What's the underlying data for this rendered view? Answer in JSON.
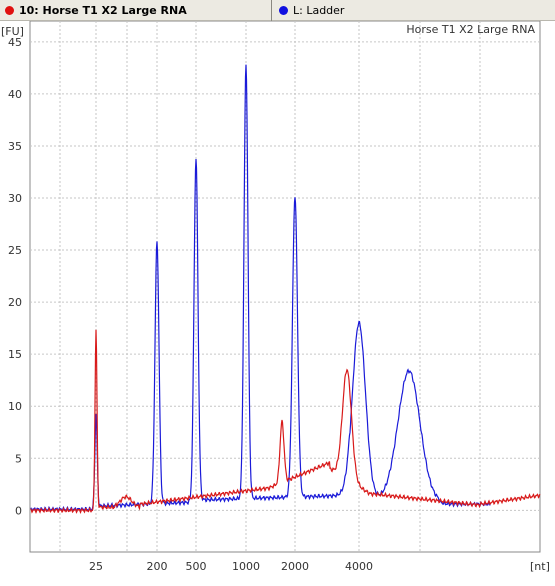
{
  "tabs": [
    {
      "label": "10: Horse T1 X2 Large RNA",
      "color": "#e01010"
    },
    {
      "label": "L: Ladder",
      "color": "#1010e0"
    }
  ],
  "chart_data": {
    "type": "line",
    "title": "Horse T1 X2 Large RNA",
    "ylabel": "[FU]",
    "xlabel": "[nt]",
    "ylim": [
      -4,
      47
    ],
    "yticks": [
      0,
      5,
      10,
      15,
      20,
      25,
      30,
      35,
      40,
      45
    ],
    "xticks": [
      "25",
      "200",
      "500",
      "1000",
      "2000",
      "4000"
    ],
    "grid": true,
    "series": [
      {
        "name": "Horse T1 X2 Large RNA",
        "color": "#dd1111",
        "peaks": [
          {
            "x": "25",
            "y": 17.3
          },
          {
            "x": "~1700",
            "y": 8.5
          },
          {
            "x": "~3600",
            "y": 13.5
          }
        ]
      },
      {
        "name": "Ladder",
        "color": "#1111dd",
        "peaks": [
          {
            "x": "25",
            "y": 9.2
          },
          {
            "x": "200",
            "y": 25.8
          },
          {
            "x": "500",
            "y": 33.8
          },
          {
            "x": "1000",
            "y": 42.8
          },
          {
            "x": "2000",
            "y": 30.2
          },
          {
            "x": "4000",
            "y": 18.0
          },
          {
            "x": "6000",
            "y": 13.4
          }
        ]
      }
    ]
  }
}
